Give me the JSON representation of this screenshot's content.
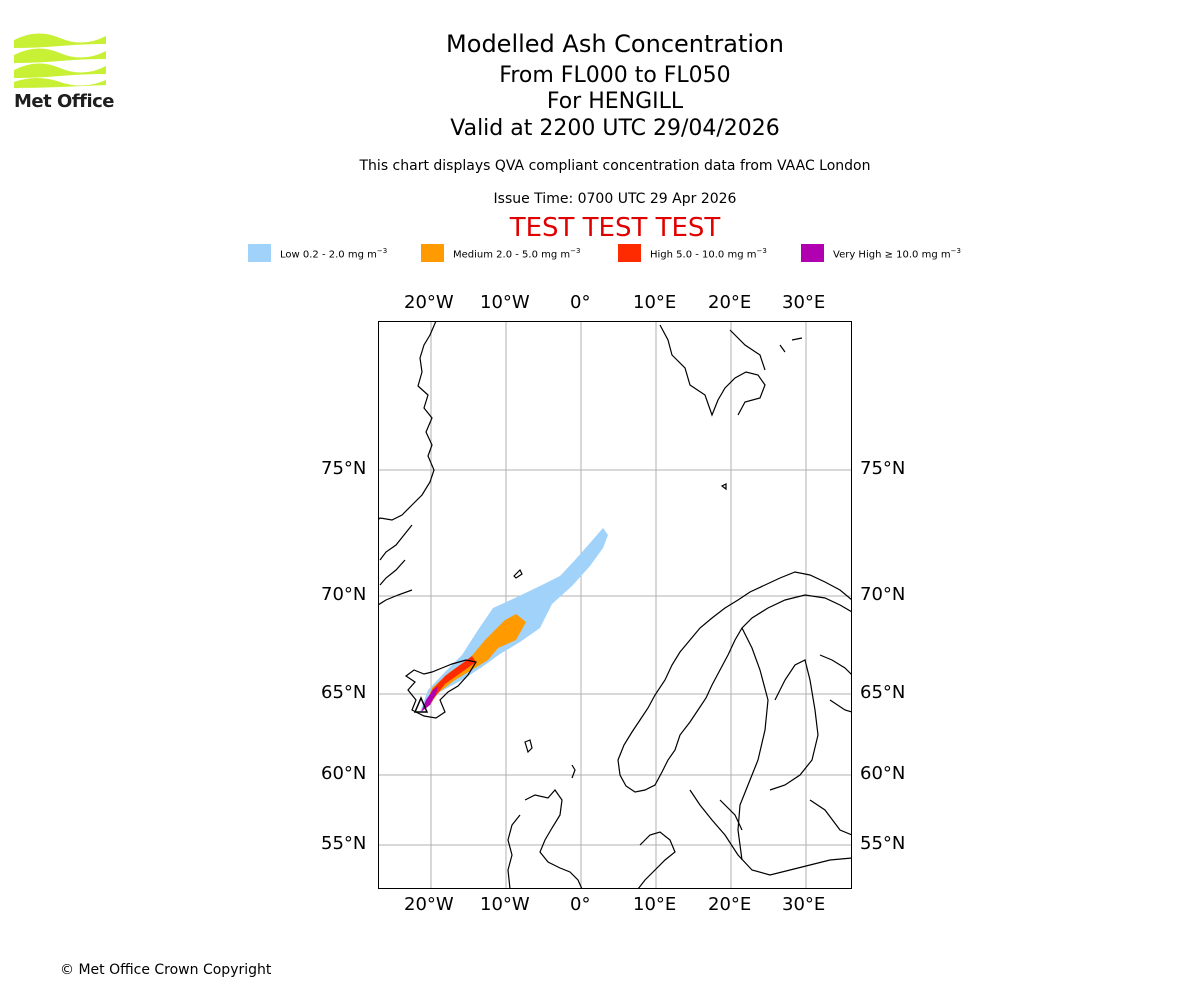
{
  "logo": {
    "text": "Met Office"
  },
  "title": {
    "line1": "Modelled Ash Concentration",
    "line2": "From FL000 to FL050",
    "line3": "For HENGILL",
    "line4": "Valid at 2200 UTC 29/04/2026"
  },
  "note": "This chart displays QVA compliant concentration data from VAAC London",
  "issue_time": "Issue Time: 0700 UTC 29 Apr 2026",
  "test_banner": "TEST TEST TEST",
  "legend": [
    {
      "label": "Low 0.2 - 2.0 mg m",
      "unit_exp": "−3",
      "color": "#a0d2fa"
    },
    {
      "label": "Medium 2.0 - 5.0 mg m",
      "unit_exp": "−3",
      "color": "#ff9a00"
    },
    {
      "label": "High 5.0 - 10.0 mg m",
      "unit_exp": "−3",
      "color": "#ff2b00"
    },
    {
      "label": "Very High  ≥  10.0 mg m",
      "unit_exp": "−3",
      "color": "#b000b0"
    }
  ],
  "map": {
    "lon_labels": [
      "20°W",
      "10°W",
      "0°",
      "10°E",
      "20°E",
      "30°E"
    ],
    "lat_labels": [
      "75°N",
      "70°N",
      "65°N",
      "60°N",
      "55°N"
    ],
    "volcano": "HENGILL"
  },
  "copyright": "© Met Office Crown Copyright"
}
